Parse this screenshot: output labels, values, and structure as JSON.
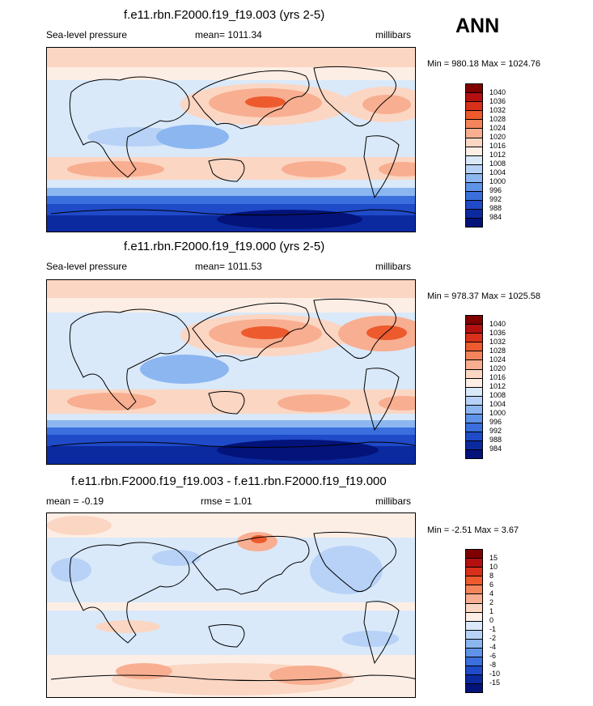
{
  "season_label": "ANN",
  "panels": [
    {
      "title": "f.e11.rbn.F2000.f19_f19.003 (yrs 2-5)",
      "left_label": "Sea-level pressure",
      "center_label": "mean= 1011.34",
      "units": "millibars",
      "minmax": "Min = 980.18 Max = 1024.76",
      "colorbar_labels": [
        "1040",
        "1036",
        "1032",
        "1028",
        "1024",
        "1020",
        "1016",
        "1012",
        "1008",
        "1004",
        "1000",
        "996",
        "992",
        "988",
        "984"
      ]
    },
    {
      "title": "f.e11.rbn.F2000.f19_f19.000 (yrs 2-5)",
      "left_label": "Sea-level pressure",
      "center_label": "mean= 1011.53",
      "units": "millibars",
      "minmax": "Min = 978.37 Max = 1025.58",
      "colorbar_labels": [
        "1040",
        "1036",
        "1032",
        "1028",
        "1024",
        "1020",
        "1016",
        "1012",
        "1008",
        "1004",
        "1000",
        "996",
        "992",
        "988",
        "984"
      ]
    },
    {
      "title": "f.e11.rbn.F2000.f19_f19.003 - f.e11.rbn.F2000.f19_f19.000",
      "left_label": "mean =  -0.19",
      "center_label": "rmse =   1.01",
      "units": "millibars",
      "minmax": "Min =  -2.51 Max =   3.67",
      "colorbar_labels": [
        "15",
        "10",
        "8",
        "6",
        "4",
        "2",
        "1",
        "0",
        "-1",
        "-2",
        "-4",
        "-6",
        "-8",
        "-10",
        "-15"
      ]
    }
  ],
  "colors": {
    "levels": [
      "#800000",
      "#b41010",
      "#d9301a",
      "#ec5a2e",
      "#f3845c",
      "#f8ae90",
      "#fbd6c3",
      "#fdeee5",
      "#d9e9fa",
      "#b7d2f6",
      "#8cb6f0",
      "#5f93e8",
      "#3a6fdd",
      "#1f4ac8",
      "#0b2aa0",
      "#03137a"
    ],
    "land_line": "#000000"
  }
}
